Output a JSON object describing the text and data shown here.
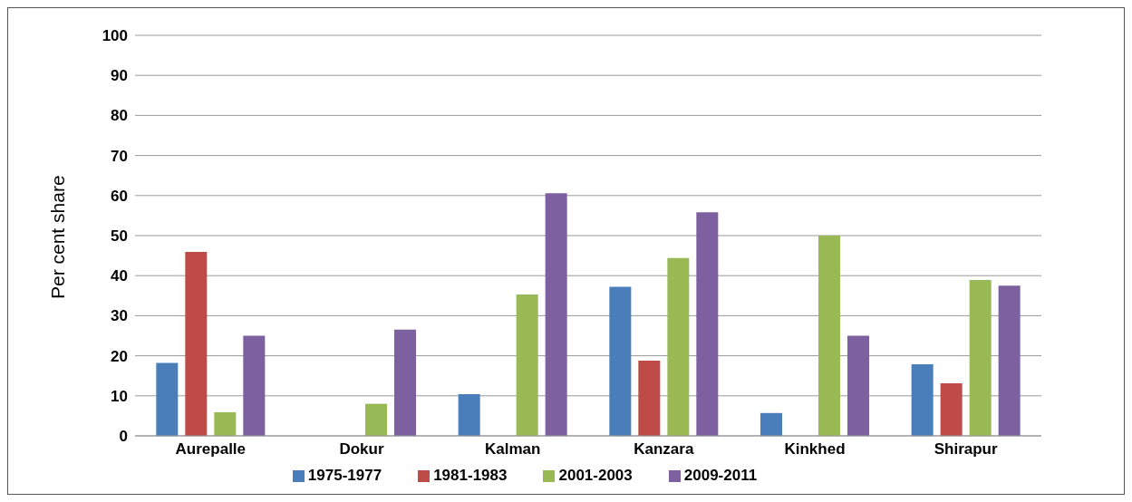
{
  "chart_data": {
    "type": "bar",
    "ylabel": "Per cent share",
    "categories": [
      "Aurepalle",
      "Dokur",
      "Kalman",
      "Kanzara",
      "Kinkhed",
      "Shirapur"
    ],
    "series": [
      {
        "name": "1975-1977",
        "color": "#4a7ebb",
        "values": [
          18.2,
          null,
          10.4,
          37.2,
          5.7,
          17.9
        ]
      },
      {
        "name": "1981-1983",
        "color": "#be4b48",
        "values": [
          45.9,
          null,
          null,
          18.8,
          null,
          13.1
        ]
      },
      {
        "name": "2001-2003",
        "color": "#98b954",
        "values": [
          5.9,
          8,
          35.3,
          44.4,
          50,
          38.9
        ]
      },
      {
        "name": "2009-2011",
        "color": "#7d60a0",
        "values": [
          25,
          26.5,
          60.6,
          55.8,
          25,
          37.5
        ]
      }
    ],
    "ylim": [
      0,
      100
    ],
    "yticks": [
      0,
      10,
      20,
      30,
      40,
      50,
      60,
      70,
      80,
      90,
      100
    ],
    "grid": "y",
    "legend": "bottom"
  }
}
